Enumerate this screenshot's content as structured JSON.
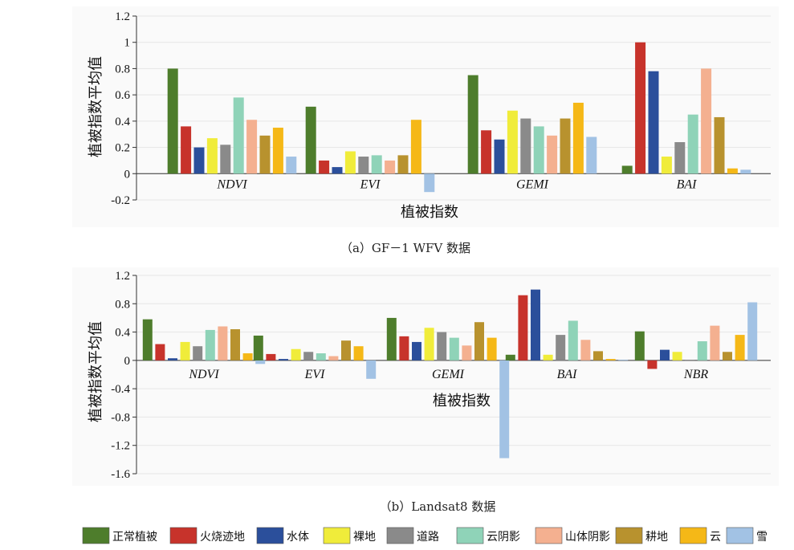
{
  "colors": [
    "#4e7d2c",
    "#c7332b",
    "#2b4f9b",
    "#f0ec3a",
    "#8a8a8a",
    "#8fd3b8",
    "#f4b090",
    "#b8922e",
    "#f5b817",
    "#a2c2e4"
  ],
  "legend": [
    "正常植被",
    "火烧迹地",
    "水体",
    "裸地",
    "道路",
    "云阴影",
    "山体阴影",
    "耕地",
    "云",
    "雪"
  ],
  "chart_data": [
    {
      "type": "bar",
      "caption": "（a）GF－1 WFV 数据",
      "xlabel": "植被指数",
      "ylabel": "植被指数平均值",
      "ylim": [
        -0.2,
        1.2
      ],
      "yticks": [
        "1.2",
        "1",
        "0.8",
        "0.6",
        "0.4",
        "0.2",
        "0",
        "-0.2"
      ],
      "ytick_values": [
        1.2,
        1.0,
        0.8,
        0.6,
        0.4,
        0.2,
        0,
        -0.2
      ],
      "categories": [
        "NDVI",
        "EVI",
        "GEMI",
        "BAI"
      ],
      "series": [
        {
          "name": "正常植被",
          "values": [
            0.8,
            0.51,
            0.75,
            0.06
          ]
        },
        {
          "name": "火烧迹地",
          "values": [
            0.36,
            0.1,
            0.33,
            1.0
          ]
        },
        {
          "name": "水体",
          "values": [
            0.2,
            0.05,
            0.26,
            0.78
          ]
        },
        {
          "name": "裸地",
          "values": [
            0.27,
            0.17,
            0.48,
            0.13
          ]
        },
        {
          "name": "道路",
          "values": [
            0.22,
            0.13,
            0.42,
            0.24
          ]
        },
        {
          "name": "云阴影",
          "values": [
            0.58,
            0.14,
            0.36,
            0.45
          ]
        },
        {
          "name": "山体阴影",
          "values": [
            0.41,
            0.1,
            0.29,
            0.8
          ]
        },
        {
          "name": "耕地",
          "values": [
            0.29,
            0.14,
            0.42,
            0.43
          ]
        },
        {
          "name": "云",
          "values": [
            0.35,
            0.41,
            0.54,
            0.04
          ]
        },
        {
          "name": "雪",
          "values": [
            0.13,
            -0.14,
            0.28,
            0.03
          ]
        }
      ]
    },
    {
      "type": "bar",
      "caption": "（b）Landsat8 数据",
      "xlabel": "植被指数",
      "ylabel": "植被指数平均值",
      "ylim": [
        -1.6,
        1.2
      ],
      "yticks": [
        "1.2",
        "0.8",
        "0.4",
        "0",
        "-0.4",
        "-0.8",
        "-1.2",
        "-1.6"
      ],
      "ytick_values": [
        1.2,
        0.8,
        0.4,
        0,
        -0.4,
        -0.8,
        -1.2,
        -1.6
      ],
      "categories": [
        "NDVI",
        "EVI",
        "GEMI",
        "BAI",
        "NBR"
      ],
      "series": [
        {
          "name": "正常植被",
          "values": [
            0.58,
            0.35,
            0.6,
            0.08,
            0.41
          ]
        },
        {
          "name": "火烧迹地",
          "values": [
            0.23,
            0.09,
            0.34,
            0.92,
            -0.12
          ]
        },
        {
          "name": "水体",
          "values": [
            0.03,
            0.02,
            0.26,
            1.0,
            0.15
          ]
        },
        {
          "name": "裸地",
          "values": [
            0.26,
            0.16,
            0.46,
            0.08,
            0.12
          ]
        },
        {
          "name": "道路",
          "values": [
            0.2,
            0.12,
            0.4,
            0.36,
            0.0
          ]
        },
        {
          "name": "云阴影",
          "values": [
            0.43,
            0.1,
            0.32,
            0.56,
            0.27
          ]
        },
        {
          "name": "山体阴影",
          "values": [
            0.48,
            0.06,
            0.21,
            0.29,
            0.49
          ]
        },
        {
          "name": "耕地",
          "values": [
            0.44,
            0.28,
            0.54,
            0.13,
            0.12
          ]
        },
        {
          "name": "云",
          "values": [
            0.1,
            0.2,
            0.32,
            0.02,
            0.36
          ]
        },
        {
          "name": "雪",
          "values": [
            -0.05,
            -0.26,
            -1.38,
            0.01,
            0.82
          ]
        }
      ]
    }
  ]
}
